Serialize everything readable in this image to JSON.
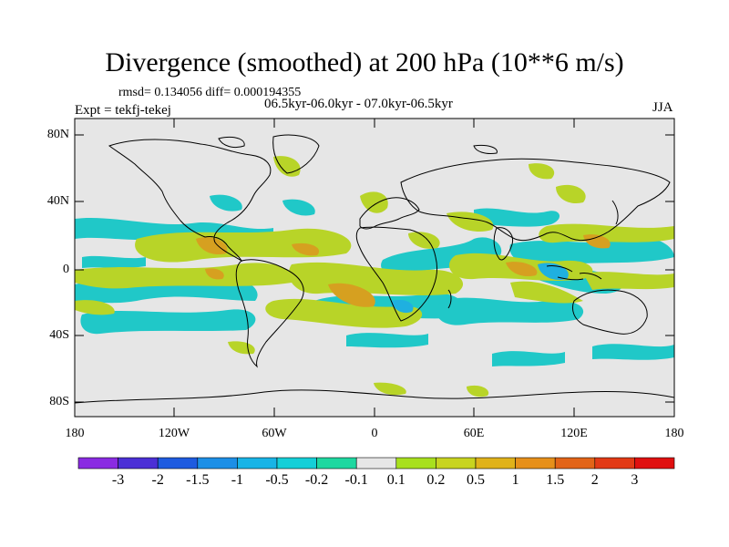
{
  "title": "Divergence (smoothed) at 200 hPa (10**6 m/s)",
  "stats": "rmsd= 0.134056 diff= 0.000194355",
  "periods": "06.5kyr-06.0kyr - 07.0kyr-06.5kyr",
  "experiment": "Expt = tekfj-tekej",
  "season": "JJA",
  "lat_ticks": [
    "80N",
    "40N",
    "0",
    "40S",
    "80S"
  ],
  "lon_ticks": [
    "180",
    "120W",
    "60W",
    "0",
    "60E",
    "120E",
    "180"
  ],
  "colorbar": {
    "labels": [
      "-3",
      "-2",
      "-1.5",
      "-1",
      "-0.5",
      "-0.2",
      "-0.1",
      "0.1",
      "0.2",
      "0.5",
      "1",
      "1.5",
      "2",
      "3"
    ],
    "colors": [
      "#8a2be2",
      "#4b2fd6",
      "#1e5be0",
      "#1c8fe6",
      "#18b4e6",
      "#14cfd8",
      "#1ed8a0",
      "#e6e6e6",
      "#a8e01e",
      "#c8d420",
      "#e0b21a",
      "#e6901a",
      "#e26418",
      "#e23a16",
      "#e01010"
    ]
  },
  "colors": {
    "ocean": "#e6e6e6",
    "positive": "#b8d428",
    "strong_positive": "#d6a020",
    "negative": "#20c8c8",
    "negative_strong": "#1fb0e0"
  }
}
